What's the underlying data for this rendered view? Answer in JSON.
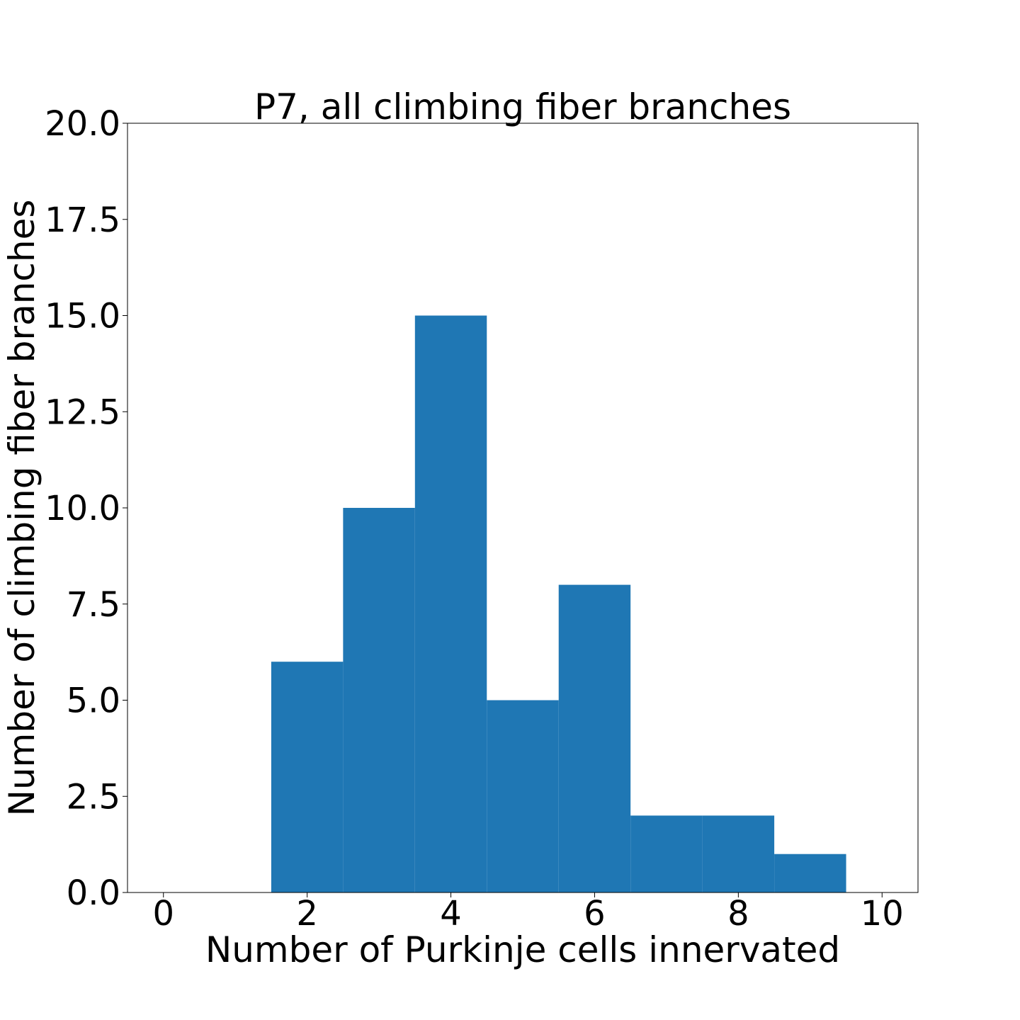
{
  "chart_data": {
    "type": "bar",
    "title": "P7, all climbing fiber branches",
    "xlabel": "Number of Purkinje cells innervated",
    "ylabel": "Number of climbing fiber branches",
    "xlim": [
      -0.5,
      10.5
    ],
    "ylim": [
      0,
      20
    ],
    "xticks": [
      0,
      2,
      4,
      6,
      8,
      10
    ],
    "xtick_labels": [
      "0",
      "2",
      "4",
      "6",
      "8",
      "10"
    ],
    "yticks": [
      0,
      2.5,
      5,
      7.5,
      10,
      12.5,
      15,
      17.5,
      20
    ],
    "ytick_labels": [
      "0.0",
      "2.5",
      "5.0",
      "7.5",
      "10.0",
      "12.5",
      "15.0",
      "17.5",
      "20.0"
    ],
    "bins": [
      {
        "x0": 1.5,
        "x1": 2.5,
        "value": 6
      },
      {
        "x0": 2.5,
        "x1": 3.5,
        "value": 10
      },
      {
        "x0": 3.5,
        "x1": 4.5,
        "value": 15
      },
      {
        "x0": 4.5,
        "x1": 5.5,
        "value": 5
      },
      {
        "x0": 5.5,
        "x1": 6.5,
        "value": 8
      },
      {
        "x0": 6.5,
        "x1": 7.5,
        "value": 2
      },
      {
        "x0": 7.5,
        "x1": 8.5,
        "value": 2
      },
      {
        "x0": 8.5,
        "x1": 9.5,
        "value": 1
      }
    ],
    "bar_color": "#1f77b4",
    "grid": false,
    "legend": "none"
  }
}
